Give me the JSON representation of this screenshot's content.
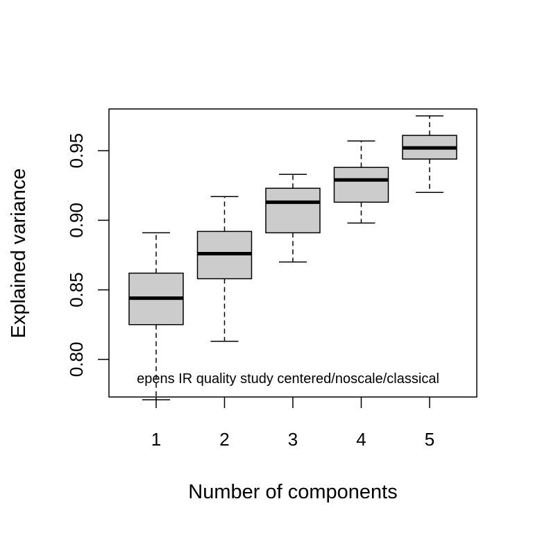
{
  "chart_data": {
    "type": "boxplot",
    "title": "",
    "xlabel": "Number of components",
    "ylabel": "Explained variance",
    "annotation": "epens IR quality study centered/noscale/classical",
    "categories": [
      "1",
      "2",
      "3",
      "4",
      "5"
    ],
    "yticks": [
      "0.80",
      "0.85",
      "0.90",
      "0.95"
    ],
    "ylim": [
      0.773,
      0.98
    ],
    "grid": false,
    "legend": "none",
    "box_fill": "#cccccc",
    "boxes": [
      {
        "whisker_low": 0.771,
        "q1": 0.825,
        "median": 0.844,
        "q3": 0.862,
        "whisker_high": 0.891
      },
      {
        "whisker_low": 0.813,
        "q1": 0.858,
        "median": 0.876,
        "q3": 0.892,
        "whisker_high": 0.917
      },
      {
        "whisker_low": 0.87,
        "q1": 0.891,
        "median": 0.913,
        "q3": 0.923,
        "whisker_high": 0.933
      },
      {
        "whisker_low": 0.898,
        "q1": 0.913,
        "median": 0.929,
        "q3": 0.938,
        "whisker_high": 0.957
      },
      {
        "whisker_low": 0.92,
        "q1": 0.944,
        "median": 0.952,
        "q3": 0.961,
        "whisker_high": 0.975
      }
    ]
  }
}
